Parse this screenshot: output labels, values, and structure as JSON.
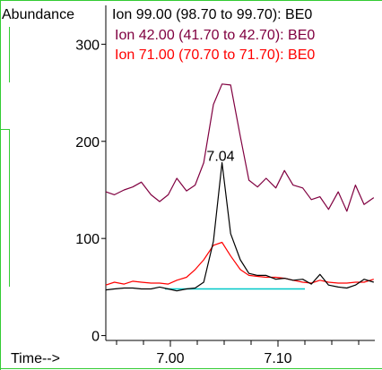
{
  "chart_data": {
    "type": "line",
    "ylabel": "Abundance",
    "xlabel": "Time-->",
    "xlim": [
      6.94,
      7.19
    ],
    "ylim": [
      -5,
      340
    ],
    "yticks": [
      0,
      100,
      200,
      300
    ],
    "xticks_labeled": [
      7.0,
      7.1
    ],
    "xtick_labels": [
      "7.00",
      "7.10"
    ],
    "xticks_minor": [
      6.95,
      6.975,
      7.025,
      7.05,
      7.075,
      7.125,
      7.15,
      7.175
    ],
    "legend": [
      {
        "text": "Ion  99.00 (98.70 to 99.70): BE0",
        "color": "#000000"
      },
      {
        "text": "Ion  42.00 (41.70 to 42.70): BE0",
        "color": "#800040"
      },
      {
        "text": "Ion  71.00 (70.70 to 71.70): BE0",
        "color": "#ff0000"
      }
    ],
    "annotations": [
      {
        "text": "7.04",
        "x": 7.04,
        "y": 182
      }
    ],
    "series": [
      {
        "color": "#000000",
        "x": [
          6.94,
          6.948,
          6.957,
          6.965,
          6.973,
          6.982,
          6.99,
          6.998,
          7.006,
          7.015,
          7.023,
          7.031,
          7.04,
          7.048,
          7.056,
          7.065,
          7.073,
          7.081,
          7.089,
          7.098,
          7.106,
          7.114,
          7.123,
          7.131,
          7.139,
          7.147,
          7.156,
          7.164,
          7.172,
          7.18,
          7.189
        ],
        "y": [
          47,
          48,
          49,
          49,
          48,
          48,
          50,
          48,
          46,
          48,
          49,
          55,
          97,
          178,
          105,
          78,
          64,
          62,
          62,
          58,
          59,
          57,
          58,
          53,
          63,
          52,
          50,
          49,
          52,
          58,
          55
        ]
      },
      {
        "color": "#800040",
        "x": [
          6.94,
          6.948,
          6.957,
          6.965,
          6.973,
          6.982,
          6.99,
          6.998,
          7.006,
          7.015,
          7.023,
          7.031,
          7.04,
          7.048,
          7.056,
          7.065,
          7.073,
          7.081,
          7.089,
          7.098,
          7.106,
          7.114,
          7.123,
          7.131,
          7.139,
          7.147,
          7.156,
          7.164,
          7.172,
          7.18,
          7.189
        ],
        "y": [
          148,
          145,
          150,
          153,
          158,
          145,
          138,
          145,
          162,
          149,
          155,
          178,
          238,
          259,
          258,
          205,
          160,
          153,
          162,
          152,
          170,
          155,
          152,
          140,
          143,
          130,
          148,
          128,
          155,
          135,
          142
        ]
      },
      {
        "color": "#ff0000",
        "x": [
          6.94,
          6.948,
          6.957,
          6.965,
          6.973,
          6.982,
          6.99,
          6.998,
          7.006,
          7.015,
          7.023,
          7.031,
          7.04,
          7.048,
          7.056,
          7.065,
          7.073,
          7.081,
          7.089,
          7.098,
          7.106,
          7.114,
          7.123,
          7.131,
          7.139,
          7.147,
          7.156,
          7.164,
          7.172,
          7.18,
          7.189
        ],
        "y": [
          52,
          55,
          53,
          56,
          55,
          54,
          54,
          53,
          57,
          60,
          68,
          78,
          93,
          96,
          82,
          68,
          62,
          61,
          60,
          60,
          59,
          57,
          55,
          54,
          57,
          55,
          54,
          54,
          55,
          55,
          58
        ]
      }
    ],
    "baseline": {
      "color": "#00c8c8",
      "x": [
        6.995,
        7.125
      ],
      "y": [
        48,
        48
      ]
    }
  }
}
